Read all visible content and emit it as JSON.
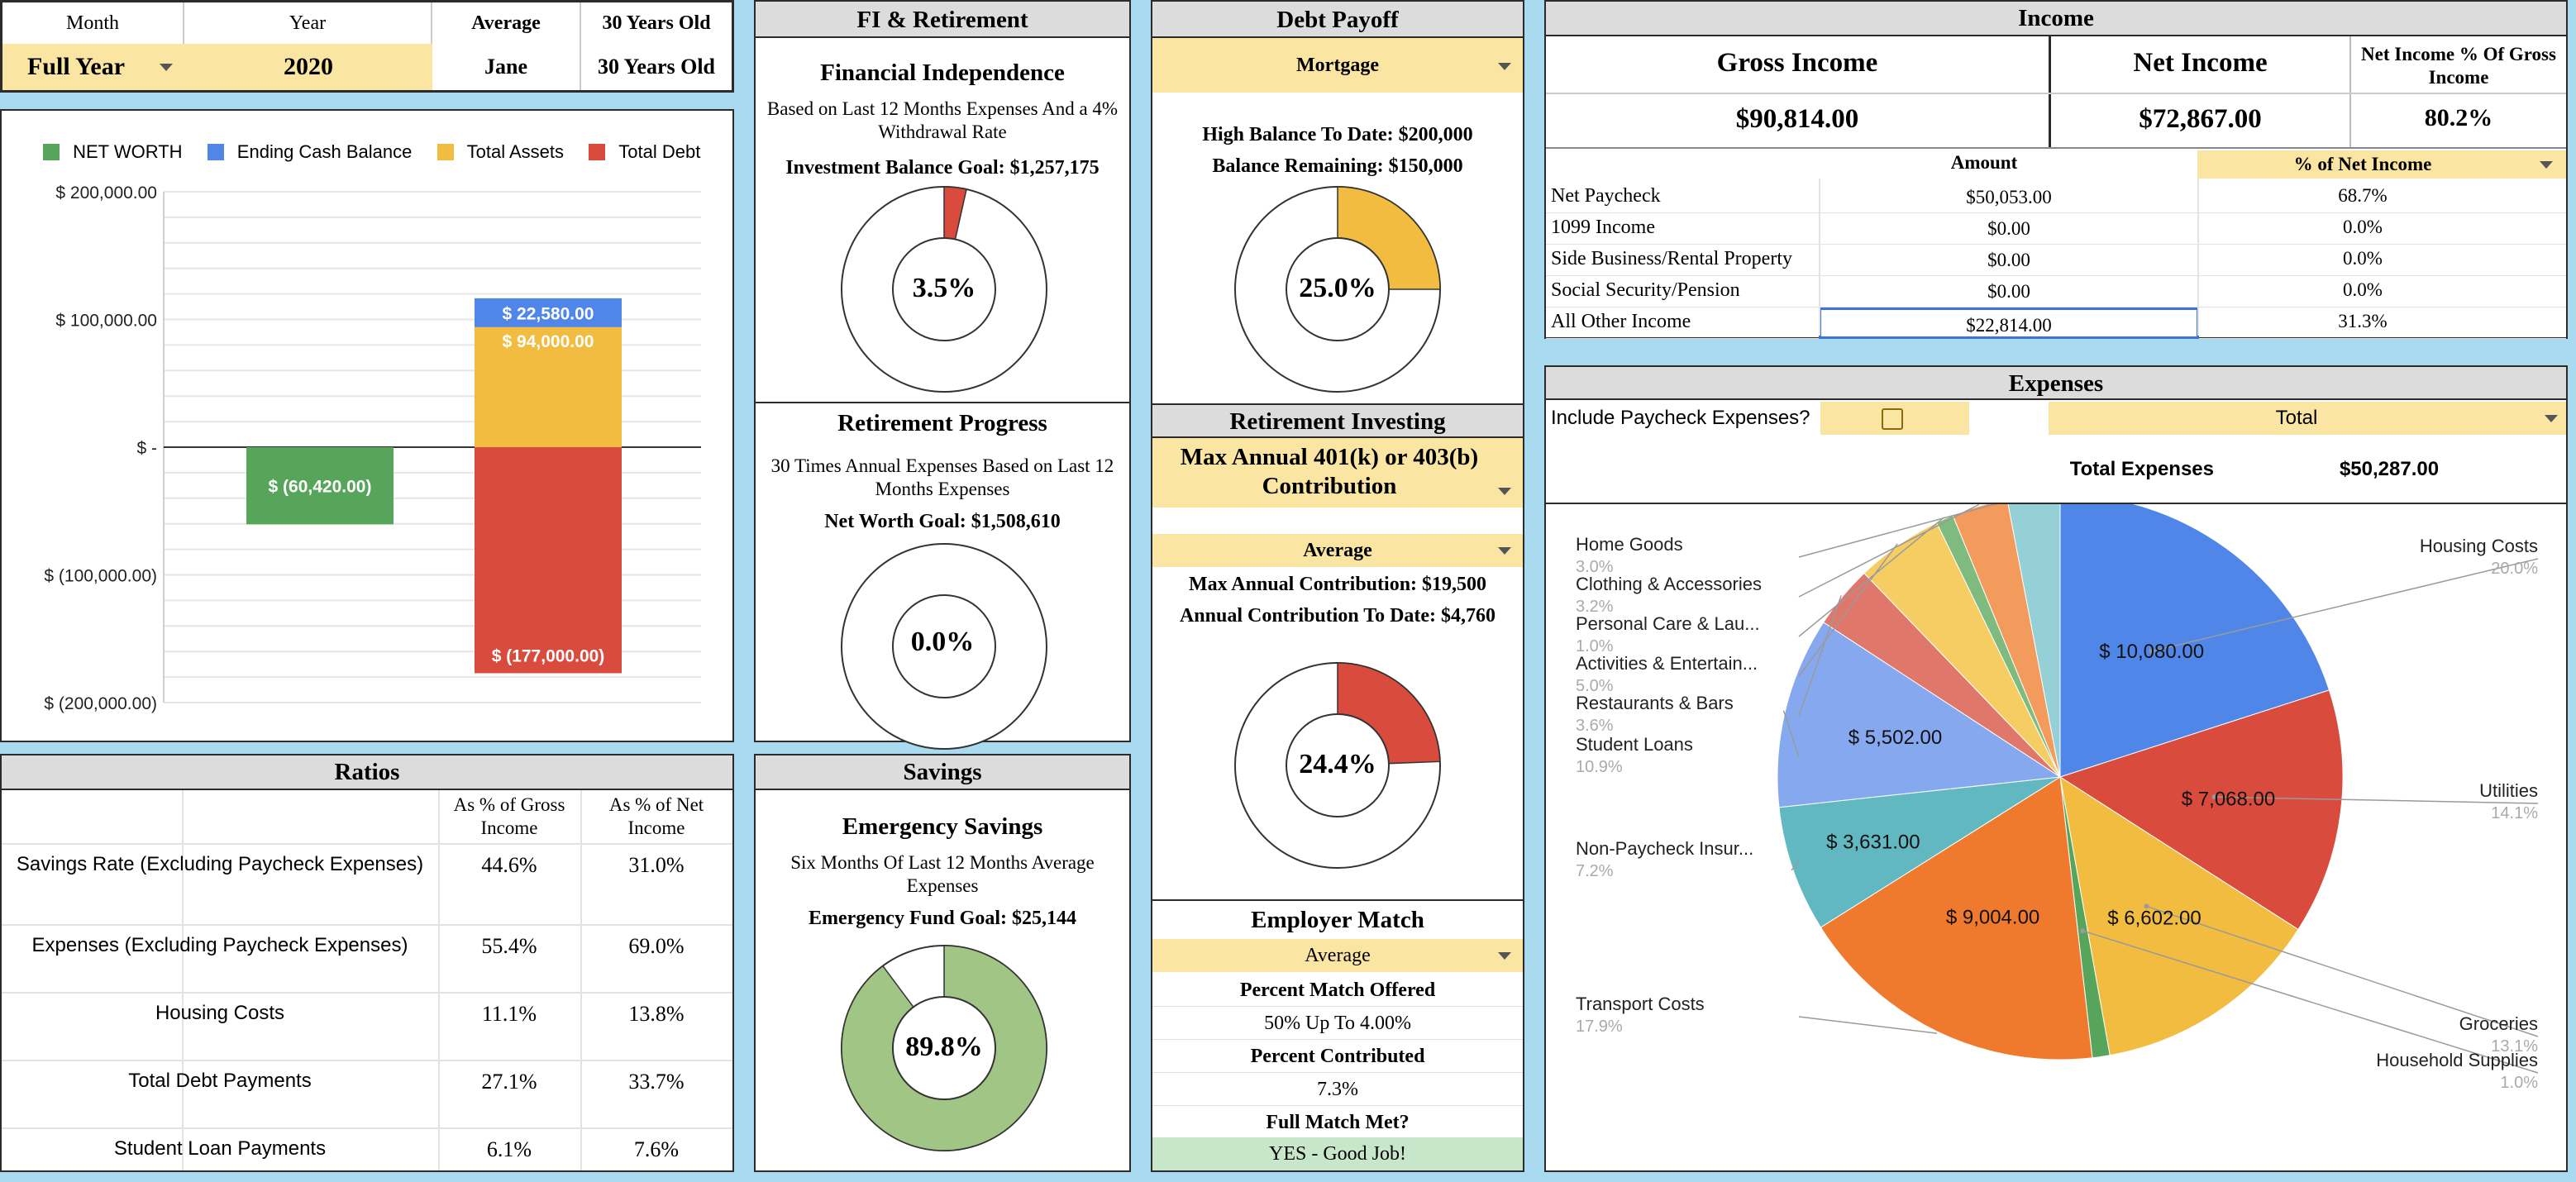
{
  "top_selector": {
    "month_header": "Month",
    "year_header": "Year",
    "average_header": "Average",
    "age_header": "30 Years Old",
    "month_value": "Full Year",
    "year_value": "2020",
    "average_value": "Jane",
    "age_value": "30 Years Old"
  },
  "net_worth_chart": {
    "legend": [
      "NET WORTH",
      "Ending Cash Balance",
      "Total Assets",
      "Total Debt"
    ],
    "ticks": [
      "$ 200,000.00",
      "$ 100,000.00",
      "$ -",
      "$ (100,000.00)",
      "$ (200,000.00)"
    ],
    "labels": {
      "net_worth": "$ (60,420.00)",
      "cash": "$ 22,580.00",
      "assets": "$ 94,000.00",
      "debt": "$ (177,000.00)"
    }
  },
  "chart_data": [
    {
      "type": "bar",
      "legend_position": "top",
      "series": [
        {
          "name": "NET WORTH",
          "values": [
            -60420
          ],
          "color": "#57a55a"
        },
        {
          "name": "Ending Cash Balance",
          "values": [
            22580
          ],
          "color": "#4f86e8"
        },
        {
          "name": "Total Assets",
          "values": [
            94000
          ],
          "color": "#f2bc41"
        },
        {
          "name": "Total Debt",
          "values": [
            -177000
          ],
          "color": "#d94b3c"
        }
      ],
      "ylim": [
        -200000,
        200000
      ],
      "yticks": [
        "$ 200,000.00",
        "$ 100,000.00",
        "$ -",
        "$ (100,000.00)",
        "$ (200,000.00)"
      ]
    },
    {
      "type": "pie",
      "slices": [
        {
          "label": "Housing Costs",
          "pct": "20.0%",
          "value": 10080,
          "value_label": "$ 10,080.00",
          "color": "#4f86e8"
        },
        {
          "label": "Utilities",
          "pct": "14.1%",
          "value": 7068,
          "value_label": "$ 7,068.00",
          "color": "#d94b3c"
        },
        {
          "label": "Groceries",
          "pct": "13.1%",
          "value": 6602,
          "value_label": "$ 6,602.00",
          "color": "#f2bc41"
        },
        {
          "label": "Household Supplies",
          "pct": "1.0%",
          "value": 503,
          "value_label": "",
          "color": "#57a55a"
        },
        {
          "label": "Transport Costs",
          "pct": "17.9%",
          "value": 9004,
          "value_label": "$ 9,004.00",
          "color": "#ef7a2e"
        },
        {
          "label": "Non-Paycheck Insur...",
          "pct": "7.2%",
          "value": 3631,
          "value_label": "$ 3,631.00",
          "color": "#62b8c1"
        },
        {
          "label": "Student Loans",
          "pct": "10.9%",
          "value": 5502,
          "value_label": "$ 5,502.00",
          "color": "#86a8ef"
        },
        {
          "label": "Restaurants & Bars",
          "pct": "3.6%",
          "value": 1810,
          "value_label": "",
          "color": "#e0776b"
        },
        {
          "label": "Activities & Entertain...",
          "pct": "5.0%",
          "value": 2514,
          "value_label": "",
          "color": "#f6cd62"
        },
        {
          "label": "Personal Care & Lau...",
          "pct": "1.0%",
          "value": 503,
          "value_label": "",
          "color": "#7fbb7f"
        },
        {
          "label": "Clothing & Accessories",
          "pct": "3.2%",
          "value": 1609,
          "value_label": "",
          "color": "#f29b5d"
        },
        {
          "label": "Home Goods",
          "pct": "3.0%",
          "value": 1509,
          "value_label": "",
          "color": "#95d0d6"
        }
      ]
    }
  ],
  "ratios": {
    "title": "Ratios",
    "col_gross": "As % of Gross Income",
    "col_net": "As % of Net Income",
    "rows": [
      {
        "label": "Savings Rate (Excluding Paycheck Expenses)",
        "gross": "44.6%",
        "net": "31.0%"
      },
      {
        "label": "Expenses (Excluding Paycheck Expenses)",
        "gross": "55.4%",
        "net": "69.0%"
      },
      {
        "label": "Housing Costs",
        "gross": "11.1%",
        "net": "13.8%"
      },
      {
        "label": "Total Debt Payments",
        "gross": "27.1%",
        "net": "33.7%"
      },
      {
        "label": "Student Loan Payments",
        "gross": "6.1%",
        "net": "7.6%"
      }
    ]
  },
  "fi": {
    "title": "FI & Retirement",
    "fi_title": "Financial Independence",
    "fi_desc": "Based on Last 12 Months Expenses And a 4% Withdrawal Rate",
    "fi_goal": "Investment Balance Goal: $1,257,175",
    "fi_pct": "3.5%",
    "fi_value": 0.035,
    "ret_title": "Retirement Progress",
    "ret_desc": "30 Times Annual Expenses Based on Last 12 Months Expenses",
    "ret_goal": "Net Worth Goal: $1,508,610",
    "ret_pct": "0.0%",
    "ret_value": 0
  },
  "savings": {
    "title": "Savings",
    "em_title": "Emergency Savings",
    "em_desc": "Six Months Of Last 12 Months Average Expenses",
    "em_goal": "Emergency Fund Goal: $25,144",
    "em_pct": "89.8%",
    "em_value": 0.898
  },
  "debt": {
    "title": "Debt Payoff",
    "select": "Mortgage",
    "high": "High Balance To Date: $200,000",
    "remaining": "Balance Remaining: $150,000",
    "pct": "25.0%",
    "value": 0.25
  },
  "ret_inv": {
    "title": "Retirement Investing",
    "select": "Max Annual 401(k) or 403(b) Contribution",
    "avg_select": "Average",
    "max": "Max Annual Contribution: $19,500",
    "to_date": "Annual Contribution To Date: $4,760",
    "pct": "24.4%",
    "value": 0.244
  },
  "employer": {
    "title": "Employer Match",
    "avg_select": "Average",
    "match_label": "Percent Match Offered",
    "match_value": "50% Up To 4.00%",
    "contrib_label": "Percent Contributed",
    "contrib_value": "7.3%",
    "full_label": "Full Match Met?",
    "full_value": "YES - Good Job!"
  },
  "income": {
    "title": "Income",
    "gross_label": "Gross Income",
    "net_label": "Net Income",
    "pct_label": "Net Income % Of Gross Income",
    "gross_value": "$90,814.00",
    "net_value": "$72,867.00",
    "pct_value": "80.2%",
    "col_amount": "Amount",
    "col_pct": "% of Net Income",
    "rows": [
      {
        "label": "Net Paycheck",
        "amount": "$50,053.00",
        "pct": "68.7%"
      },
      {
        "label": "1099 Income",
        "amount": "$0.00",
        "pct": "0.0%"
      },
      {
        "label": "Side Business/Rental Property",
        "amount": "$0.00",
        "pct": "0.0%"
      },
      {
        "label": "Social Security/Pension",
        "amount": "$0.00",
        "pct": "0.0%"
      },
      {
        "label": "All Other Income",
        "amount": "$22,814.00",
        "pct": "31.3%"
      }
    ]
  },
  "expenses": {
    "title": "Expenses",
    "include_label": "Include Paycheck Expenses?",
    "total_select": "Total",
    "total_label": "Total Expenses",
    "total_value": "$50,287.00"
  },
  "colors": {
    "accent_yellow": "#fbe5a3",
    "header_gray": "#dcdcdc",
    "good_green": "#c8e6c9",
    "background_blue": "#a9daf0"
  }
}
